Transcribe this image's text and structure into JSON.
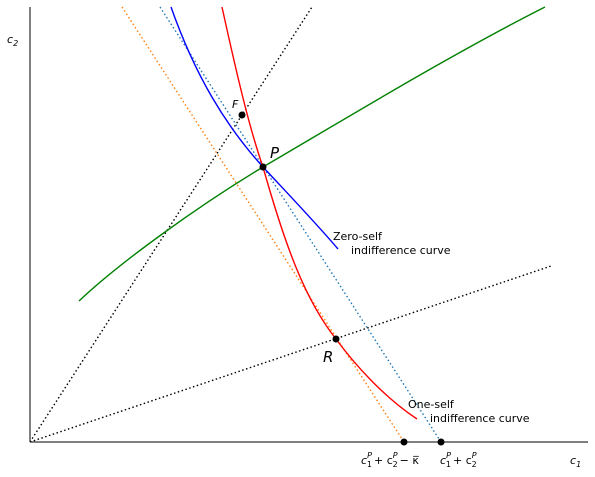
{
  "axes": {
    "x_label": "c",
    "x_sub": "1",
    "y_label": "c",
    "y_sub": "2"
  },
  "points": {
    "F": "F",
    "P": "P",
    "R": "R"
  },
  "curves": {
    "zero_self_line1": "Zero-self",
    "zero_self_line2": "indifference curve",
    "one_self_line1": "One-self",
    "one_self_line2": "indifference curve"
  },
  "ticks": {
    "left": {
      "a": "c",
      "a_sup": "P",
      "a_sub": "1",
      "plus": "+ c",
      "b_sup": "P",
      "b_sub": "2",
      "rest": "− κ̅"
    },
    "right": {
      "a": "c",
      "a_sup": "P",
      "a_sub": "1",
      "plus": "+ c",
      "b_sup": "P",
      "b_sub": "2"
    }
  },
  "colors": {
    "zero_self_curve": "#0000ff",
    "one_self_curve": "#ff0000",
    "expansion_path": "#008000",
    "budget_line_left": "#ff7f0e",
    "budget_line_right": "#1f77b4",
    "rays": "#000000"
  }
}
